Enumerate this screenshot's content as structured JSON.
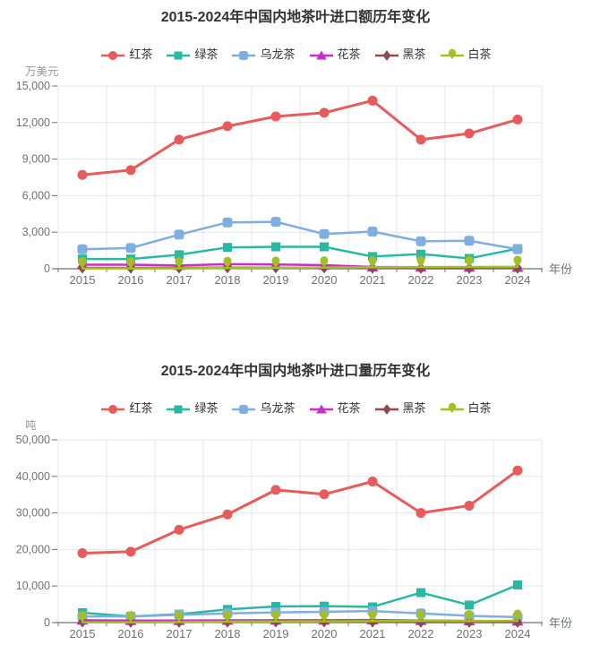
{
  "chart_data": [
    {
      "type": "line",
      "title": "2015-2024年中国内地茶叶进口额历年变化",
      "ylabel": "万美元",
      "xlabel": "年份",
      "legend_position": "top",
      "grid": true,
      "categories": [
        "2015",
        "2016",
        "2017",
        "2018",
        "2019",
        "2020",
        "2021",
        "2022",
        "2023",
        "2024"
      ],
      "ylim": [
        0,
        15000
      ],
      "ytick_step": 3000,
      "series": [
        {
          "name": "红茶",
          "color": "#e85b5b",
          "symbol": "circle",
          "values": [
            7700,
            8100,
            10600,
            11700,
            12500,
            12800,
            13800,
            10600,
            11100,
            12250
          ]
        },
        {
          "name": "绿茶",
          "color": "#2bb8a3",
          "symbol": "rect",
          "values": [
            800,
            800,
            1150,
            1750,
            1800,
            1800,
            1000,
            1200,
            850,
            1650
          ]
        },
        {
          "name": "乌龙茶",
          "color": "#81aee1",
          "symbol": "roundRect",
          "values": [
            1600,
            1700,
            2800,
            3800,
            3850,
            2850,
            3050,
            2250,
            2300,
            1600
          ]
        },
        {
          "name": "花茶",
          "color": "#c72fc7",
          "symbol": "triangle",
          "values": [
            330,
            330,
            270,
            380,
            350,
            290,
            150,
            130,
            120,
            110
          ]
        },
        {
          "name": "黑茶",
          "color": "#8b4a4e",
          "symbol": "diamond",
          "values": [
            70,
            60,
            70,
            90,
            90,
            80,
            60,
            50,
            50,
            60
          ]
        },
        {
          "name": "白茶",
          "color": "#a2c023",
          "symbol": "pin",
          "values": [
            30,
            30,
            40,
            60,
            80,
            100,
            120,
            140,
            150,
            160
          ]
        }
      ]
    },
    {
      "type": "line",
      "title": "2015-2024年中国内地茶叶进口量历年变化",
      "ylabel": "吨",
      "xlabel": "年份",
      "legend_position": "top",
      "grid": true,
      "categories": [
        "2015",
        "2016",
        "2017",
        "2018",
        "2019",
        "2020",
        "2021",
        "2022",
        "2023",
        "2024"
      ],
      "ylim": [
        0,
        50000
      ],
      "ytick_step": 10000,
      "series": [
        {
          "name": "红茶",
          "color": "#e85b5b",
          "symbol": "circle",
          "values": [
            19000,
            19400,
            25400,
            29600,
            36300,
            35100,
            38600,
            30000,
            32000,
            41600
          ]
        },
        {
          "name": "绿茶",
          "color": "#2bb8a3",
          "symbol": "rect",
          "values": [
            2700,
            1700,
            2300,
            3600,
            4400,
            4500,
            4300,
            8200,
            4800,
            10300
          ]
        },
        {
          "name": "乌龙茶",
          "color": "#81aee1",
          "symbol": "roundRect",
          "values": [
            1700,
            1700,
            2100,
            2500,
            2800,
            2950,
            3150,
            2500,
            1850,
            1500
          ]
        },
        {
          "name": "花茶",
          "color": "#c72fc7",
          "symbol": "triangle",
          "values": [
            650,
            550,
            550,
            600,
            650,
            650,
            700,
            550,
            450,
            400
          ]
        },
        {
          "name": "黑茶",
          "color": "#8b4a4e",
          "symbol": "diamond",
          "values": [
            200,
            150,
            150,
            200,
            250,
            250,
            200,
            150,
            150,
            150
          ]
        },
        {
          "name": "白茶",
          "color": "#a2c023",
          "symbol": "pin",
          "values": [
            100,
            100,
            150,
            250,
            300,
            350,
            400,
            450,
            400,
            500
          ]
        }
      ]
    }
  ],
  "style_colors": {
    "title": "#333333",
    "axis_text": "#6E7079",
    "unit_text": "#999999",
    "gridline": "#e0e6f1",
    "axis_line": "#6E7079"
  }
}
